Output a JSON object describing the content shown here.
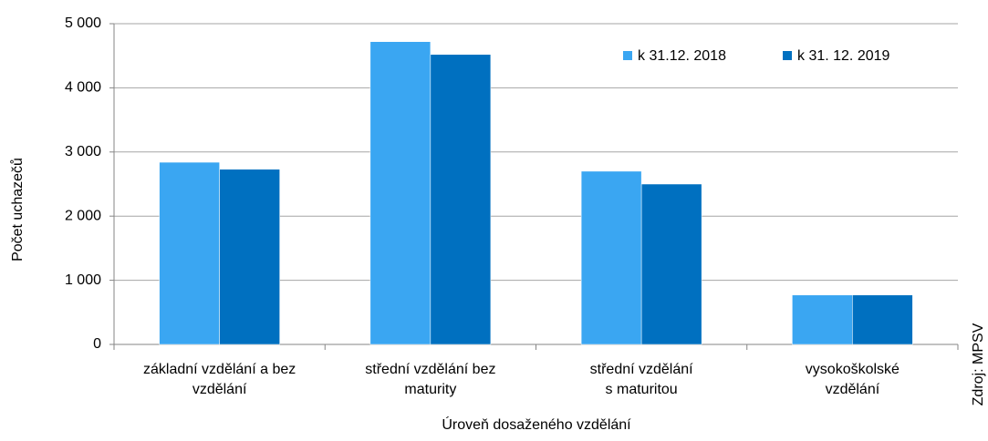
{
  "chart_data": {
    "type": "bar",
    "y_label": "Počet uchazečů",
    "x_label": "Úroveň dosaženého vzdělání",
    "source": "Zdroj: MPSV",
    "categories": [
      [
        "základní vzdělání a bez",
        "vzdělání"
      ],
      [
        "střední vzdělání  bez",
        "maturity"
      ],
      [
        "střední vzdělání",
        "s maturitou"
      ],
      [
        "vysokoškolské",
        "vzdělání"
      ]
    ],
    "series": [
      {
        "name": "k 31.12. 2018",
        "color": "#3aa6f2",
        "values": [
          2840,
          4720,
          2700,
          770
        ]
      },
      {
        "name": "k 31. 12. 2019",
        "color": "#0070c0",
        "values": [
          2730,
          4520,
          2500,
          770
        ]
      }
    ],
    "ylim": [
      0,
      5000
    ],
    "yticks": [
      0,
      {
        "value": 1000,
        "label": "1 000"
      },
      {
        "value": 2000,
        "label": "2 000"
      },
      {
        "value": 3000,
        "label": "3 000"
      },
      {
        "value": 4000,
        "label": "4 000"
      },
      {
        "value": 5000,
        "label": "5 000"
      }
    ],
    "grid": true,
    "legend": "top-right"
  }
}
